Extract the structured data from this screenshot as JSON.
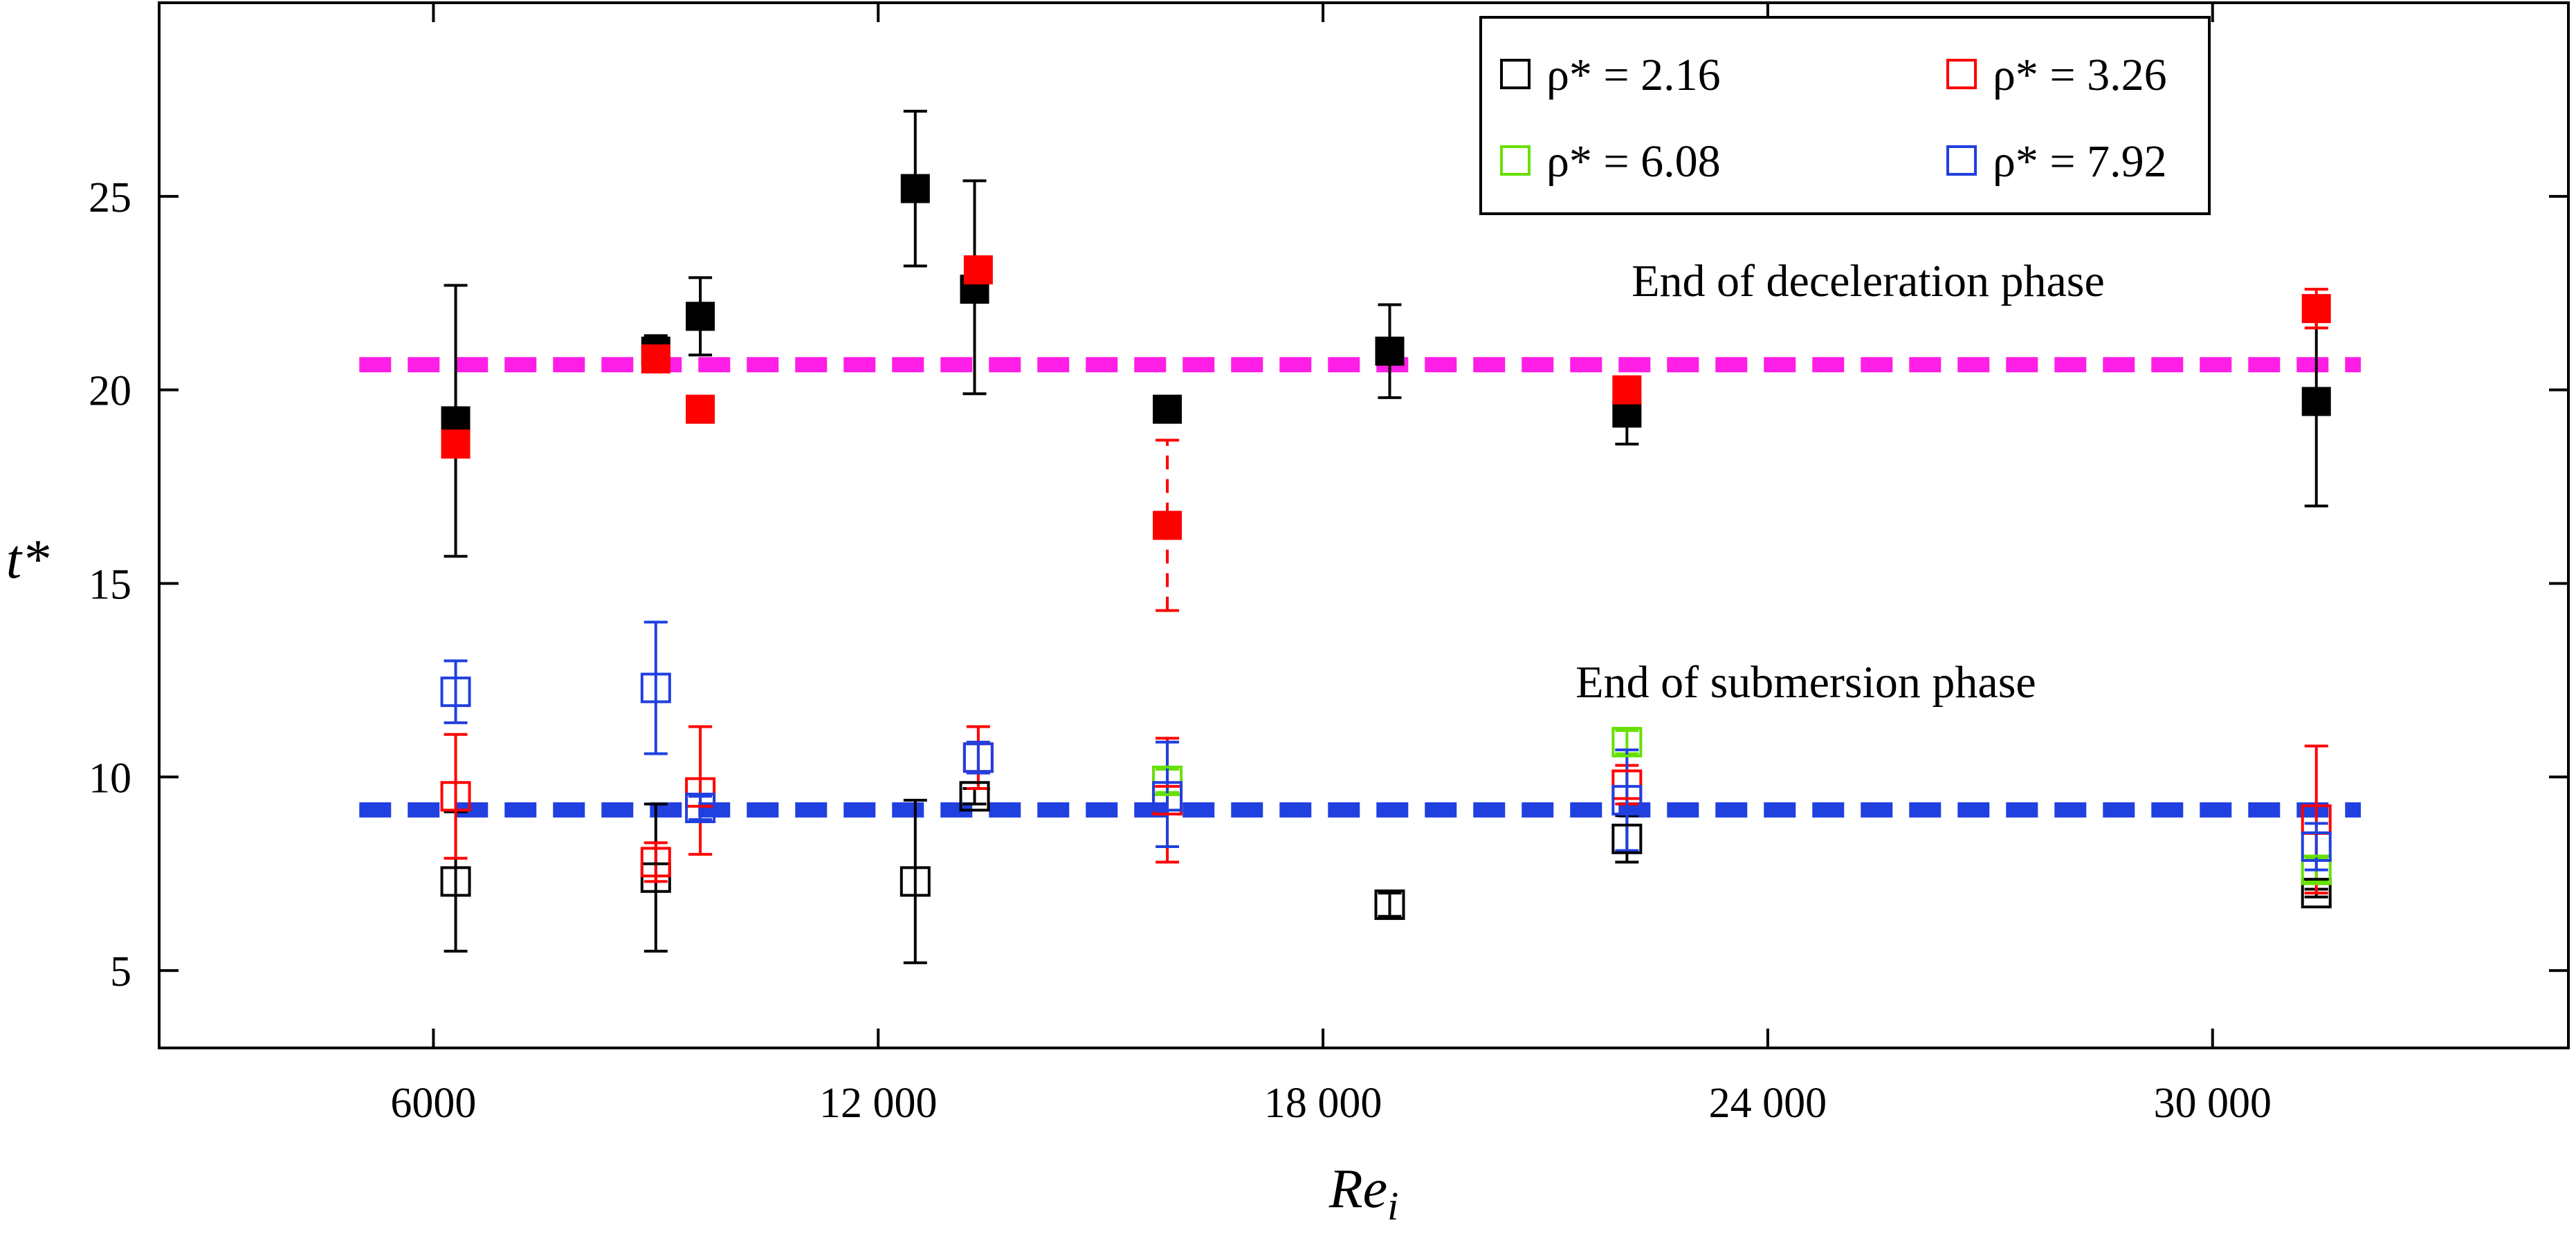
{
  "chart_data": {
    "type": "scatter",
    "title": "",
    "xlabel": "Re",
    "xlabel_sub": "i",
    "ylabel": "t*",
    "xlim": [
      2300,
      34800
    ],
    "ylim": [
      3,
      30
    ],
    "x_ticks": [
      6000,
      12000,
      18000,
      24000,
      30000
    ],
    "x_tick_labels": [
      "6000",
      "12 000",
      "18 000",
      "24 000",
      "30 000"
    ],
    "y_ticks": [
      5,
      10,
      15,
      20,
      25
    ],
    "y_tick_labels": [
      "5",
      "10",
      "15",
      "20",
      "25"
    ],
    "grid": false,
    "legend_position": "top-right",
    "legend": [
      {
        "label": "ρ* = 2.16",
        "color": "#000000"
      },
      {
        "label": "ρ* = 3.26",
        "color": "#ff0000"
      },
      {
        "label": "ρ* = 6.08",
        "color": "#66e000"
      },
      {
        "label": "ρ* = 7.92",
        "color": "#2040e0"
      }
    ],
    "reference_lines": [
      {
        "label": "End of deceleration phase",
        "y": 20.65,
        "x_range": [
          5000,
          32000
        ],
        "color": "#ff1ee6"
      },
      {
        "label": "End of submersion phase",
        "y": 9.15,
        "x_range": [
          5000,
          32000
        ],
        "color": "#2040e0"
      }
    ],
    "series": [
      {
        "name": "ρ* = 2.16, deceleration",
        "marker": "filled-square",
        "color": "#000000",
        "error_style": "solid",
        "points": [
          {
            "x": 6300,
            "y": 19.2,
            "lo": 15.7,
            "hi": 22.7
          },
          {
            "x": 9000,
            "y": 21.0,
            "lo": 20.6,
            "hi": 21.4
          },
          {
            "x": 9600,
            "y": 21.9,
            "lo": 20.9,
            "hi": 22.9
          },
          {
            "x": 12500,
            "y": 25.2,
            "lo": 23.2,
            "hi": 27.2
          },
          {
            "x": 13300,
            "y": 22.6,
            "lo": 19.9,
            "hi": 25.4
          },
          {
            "x": 15900,
            "y": 19.5,
            "lo": 19.2,
            "hi": 19.8
          },
          {
            "x": 18900,
            "y": 21.0,
            "lo": 19.8,
            "hi": 22.2
          },
          {
            "x": 22100,
            "y": 19.4,
            "lo": 18.6,
            "hi": 20.2
          },
          {
            "x": 31400,
            "y": 19.7,
            "lo": 17.0,
            "hi": 22.4
          }
        ]
      },
      {
        "name": "ρ* = 3.26, deceleration",
        "marker": "filled-square",
        "color": "#ff0000",
        "error_style": "dashed",
        "points": [
          {
            "x": 6300,
            "y": 18.6,
            "lo": 18.3,
            "hi": 18.9
          },
          {
            "x": 9000,
            "y": 20.8,
            "lo": 20.5,
            "hi": 21.1
          },
          {
            "x": 9600,
            "y": 19.5,
            "lo": 19.2,
            "hi": 19.8
          },
          {
            "x": 13350,
            "y": 23.1,
            "lo": 22.8,
            "hi": 23.4
          },
          {
            "x": 15900,
            "y": 16.5,
            "lo": 14.3,
            "hi": 18.7
          },
          {
            "x": 22100,
            "y": 20.0,
            "lo": 19.7,
            "hi": 20.3
          },
          {
            "x": 31400,
            "y": 22.1,
            "lo": 21.6,
            "hi": 22.6
          }
        ]
      },
      {
        "name": "ρ* = 2.16",
        "marker": "open-square",
        "color": "#000000",
        "error_style": "solid",
        "points": [
          {
            "x": 6300,
            "y": 7.3,
            "lo": 5.5,
            "hi": 9.1
          },
          {
            "x": 9000,
            "y": 7.4,
            "lo": 5.5,
            "hi": 9.3
          },
          {
            "x": 12500,
            "y": 7.3,
            "lo": 5.2,
            "hi": 9.4
          },
          {
            "x": 13300,
            "y": 9.5,
            "lo": 9.3,
            "hi": 9.7
          },
          {
            "x": 18900,
            "y": 6.7,
            "lo": 6.4,
            "hi": 7.0
          },
          {
            "x": 22100,
            "y": 8.4,
            "lo": 7.8,
            "hi": 9.0
          },
          {
            "x": 31400,
            "y": 7.0,
            "lo": 6.9,
            "hi": 7.1
          }
        ]
      },
      {
        "name": "ρ* = 3.26",
        "marker": "open-square",
        "color": "#ff0000",
        "error_style": "solid",
        "points": [
          {
            "x": 6300,
            "y": 9.5,
            "lo": 7.9,
            "hi": 11.1
          },
          {
            "x": 9000,
            "y": 7.8,
            "lo": 7.3,
            "hi": 8.3
          },
          {
            "x": 9600,
            "y": 9.6,
            "lo": 8.0,
            "hi": 11.3
          },
          {
            "x": 13350,
            "y": 10.5,
            "lo": 9.7,
            "hi": 11.3
          },
          {
            "x": 15900,
            "y": 9.4,
            "lo": 7.8,
            "hi": 11.0
          },
          {
            "x": 22100,
            "y": 9.8,
            "lo": 9.3,
            "hi": 10.3
          },
          {
            "x": 31400,
            "y": 8.9,
            "lo": 7.0,
            "hi": 10.8
          }
        ]
      },
      {
        "name": "ρ* = 6.08",
        "marker": "open-square",
        "color": "#66e000",
        "error_style": "solid",
        "points": [
          {
            "x": 15900,
            "y": 9.9,
            "lo": 9.6,
            "hi": 10.2
          },
          {
            "x": 22100,
            "y": 10.9,
            "lo": 10.6,
            "hi": 11.2
          },
          {
            "x": 31400,
            "y": 7.6,
            "lo": 7.3,
            "hi": 7.9
          }
        ]
      },
      {
        "name": "ρ* = 7.92",
        "marker": "open-square",
        "color": "#2040e0",
        "error_style": "solid",
        "points": [
          {
            "x": 6300,
            "y": 12.2,
            "lo": 11.4,
            "hi": 13.0
          },
          {
            "x": 9000,
            "y": 12.3,
            "lo": 10.6,
            "hi": 14.0
          },
          {
            "x": 9600,
            "y": 9.2,
            "lo": 8.9,
            "hi": 9.5
          },
          {
            "x": 13350,
            "y": 10.5,
            "lo": 10.1,
            "hi": 10.9
          },
          {
            "x": 15900,
            "y": 9.5,
            "lo": 8.2,
            "hi": 10.9
          },
          {
            "x": 22100,
            "y": 9.4,
            "lo": 8.1,
            "hi": 10.7
          },
          {
            "x": 31400,
            "y": 8.2,
            "lo": 7.6,
            "hi": 8.8
          }
        ]
      }
    ]
  }
}
